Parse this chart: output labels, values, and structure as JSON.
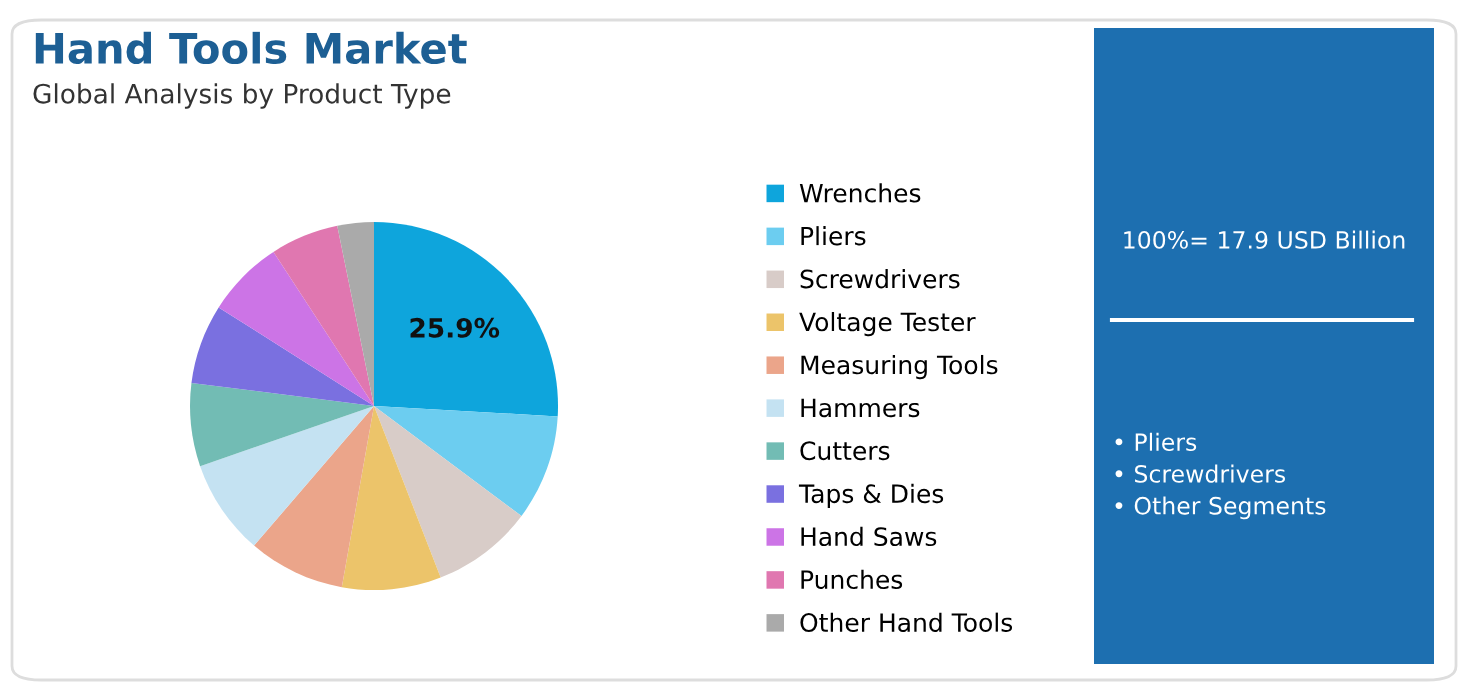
{
  "chart_data": {
    "type": "pie",
    "title": "Hand Tools Market",
    "subtitle": "Global Analysis by Product Type",
    "categories": [
      "Wrenches",
      "Pliers",
      "Screwdrivers",
      "Voltage Tester",
      "Measuring Tools",
      "Hammers",
      "Cutters",
      "Taps & Dies",
      "Hand Saws",
      "Punches",
      "Other Hand Tools"
    ],
    "values": [
      25.9,
      9.3,
      8.9,
      8.7,
      8.5,
      8.4,
      7.3,
      7.0,
      6.8,
      6.0,
      3.2
    ],
    "colors": [
      "#0ea5dc",
      "#6ccdf0",
      "#d8ccc8",
      "#ecc46a",
      "#eba58a",
      "#c4e2f2",
      "#72bcb4",
      "#7a70e0",
      "#cc74e6",
      "#e077b0",
      "#aaaaaa"
    ],
    "value_labels": [
      "25.9%",
      null,
      null,
      null,
      null,
      null,
      null,
      null,
      null,
      null,
      null
    ],
    "legend": "right",
    "annotations": [
      "100%= 17.9 USD Billion",
      "• Pliers\n• Screwdrivers\n• Other Segments"
    ]
  }
}
